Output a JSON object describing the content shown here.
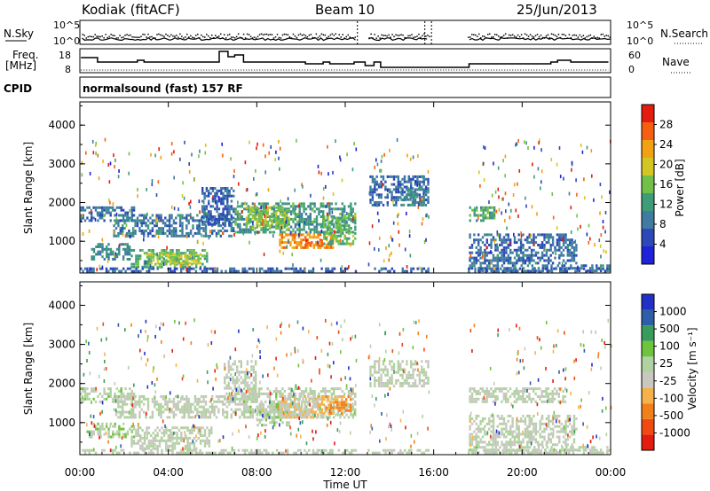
{
  "header": {
    "station": "Kodiak (fitACF)",
    "beam": "Beam 10",
    "date": "25/Jun/2013"
  },
  "noise_panel": {
    "left_label": "N.Sky",
    "right_label": "N.Search",
    "left_ticks": [
      "10^5",
      "10^0"
    ],
    "right_ticks": [
      "10^5",
      "10^0"
    ]
  },
  "freq_panel": {
    "left_label_1": "Freq.",
    "left_label_2": "[MHz]",
    "right_label": "Nave",
    "left_ticks": [
      "18",
      "8"
    ],
    "right_ticks": [
      "60",
      "0"
    ]
  },
  "cpid_panel": {
    "label": "CPID",
    "text": "normalsound (fast) 157 RF"
  },
  "colors": {
    "power_scale": [
      "#1e22d8",
      "#2d49b8",
      "#3f7ca0",
      "#3f9c78",
      "#72c04a",
      "#d2c624",
      "#f2a014",
      "#f46010",
      "#e41c10"
    ],
    "velocity_scale": [
      "#e41c10",
      "#f04a10",
      "#f2801a",
      "#f6b24a",
      "#c8c8c0",
      "#b0d2a0",
      "#6ec43c",
      "#3a9c5a",
      "#2f5ea8",
      "#2230c8"
    ]
  },
  "chart_data": [
    {
      "type": "heatmap",
      "id": "power",
      "xlabel": "",
      "ylabel": "Slant Range [km]",
      "ylim": [
        180,
        4600
      ],
      "xlim": [
        "00:00",
        "24:00"
      ],
      "yticks": [
        "1000",
        "2000",
        "3000",
        "4000"
      ],
      "xticks": [
        "00:00",
        "04:00",
        "08:00",
        "12:00",
        "16:00",
        "20:00",
        "00:00"
      ],
      "colorbar_label": "Power [dB]",
      "colorbar_ticks": [
        "4",
        "8",
        "12",
        "16",
        "20",
        "24",
        "28"
      ],
      "colorbar_range": [
        0,
        32
      ],
      "regions": [
        {
          "t": [
            0.0,
            2.5
          ],
          "r": [
            1500,
            1900
          ],
          "v": 8
        },
        {
          "t": [
            0.5,
            2.3
          ],
          "r": [
            500,
            950
          ],
          "v": 10
        },
        {
          "t": [
            2.3,
            5.8
          ],
          "r": [
            300,
            800
          ],
          "v": 14
        },
        {
          "t": [
            3.0,
            5.5
          ],
          "r": [
            400,
            700
          ],
          "v": 18
        },
        {
          "t": [
            1.5,
            7.0
          ],
          "r": [
            1100,
            1700
          ],
          "v": 9
        },
        {
          "t": [
            5.5,
            7.0
          ],
          "r": [
            1400,
            2400
          ],
          "v": 7
        },
        {
          "t": [
            7.0,
            12.5
          ],
          "r": [
            1200,
            2000
          ],
          "v": 12
        },
        {
          "t": [
            7.5,
            9.5
          ],
          "r": [
            1300,
            1900
          ],
          "v": 17
        },
        {
          "t": [
            9.0,
            11.5
          ],
          "r": [
            800,
            1200
          ],
          "v": 24
        },
        {
          "t": [
            10.0,
            11.0
          ],
          "r": [
            850,
            1050
          ],
          "v": 28
        },
        {
          "t": [
            11.0,
            12.5
          ],
          "r": [
            900,
            1700
          ],
          "v": 15
        },
        {
          "t": [
            13.0,
            15.8
          ],
          "r": [
            1900,
            2700
          ],
          "v": 8
        },
        {
          "t": [
            14.5,
            15.8
          ],
          "r": [
            1900,
            2400
          ],
          "v": 10
        },
        {
          "t": [
            17.5,
            18.8
          ],
          "r": [
            1500,
            1900
          ],
          "v": 13
        },
        {
          "t": [
            17.5,
            22.5
          ],
          "r": [
            400,
            1200
          ],
          "v": 8
        },
        {
          "t": [
            17.5,
            24.0
          ],
          "r": [
            200,
            400
          ],
          "v": 9
        },
        {
          "t": [
            0.0,
            24.0
          ],
          "r": [
            190,
            320
          ],
          "v": 7
        }
      ],
      "gaps": [
        [
          12.5,
          13.0
        ],
        [
          15.8,
          17.5
        ]
      ]
    },
    {
      "type": "heatmap",
      "id": "velocity",
      "xlabel": "Time UT",
      "ylabel": "Slant Range [km]",
      "ylim": [
        180,
        4600
      ],
      "xlim": [
        "00:00",
        "24:00"
      ],
      "yticks": [
        "1000",
        "2000",
        "3000",
        "4000"
      ],
      "xticks": [
        "00:00",
        "04:00",
        "08:00",
        "12:00",
        "16:00",
        "20:00",
        "00:00"
      ],
      "colorbar_label": "Velocity [m s⁻¹]",
      "colorbar_ticks": [
        "1000",
        "500",
        "100",
        "25",
        "-25",
        "-100",
        "-500",
        "-1000"
      ],
      "colorbar_range": [
        -1200,
        1200
      ],
      "regions": [
        {
          "t": [
            0.0,
            2.5
          ],
          "r": [
            1500,
            1900
          ],
          "v": 60
        },
        {
          "t": [
            0.3,
            2.5
          ],
          "r": [
            600,
            1000
          ],
          "v": 150
        },
        {
          "t": [
            2.3,
            6.0
          ],
          "r": [
            300,
            900
          ],
          "v": 0
        },
        {
          "t": [
            1.5,
            7.0
          ],
          "r": [
            1100,
            1700
          ],
          "v": 0
        },
        {
          "t": [
            6.5,
            8.0
          ],
          "r": [
            1500,
            2600
          ],
          "v": 0
        },
        {
          "t": [
            7.0,
            12.5
          ],
          "r": [
            1100,
            1900
          ],
          "v": 50
        },
        {
          "t": [
            8.0,
            9.5
          ],
          "r": [
            900,
            1500
          ],
          "v": 80
        },
        {
          "t": [
            9.0,
            11.0
          ],
          "r": [
            1100,
            1700
          ],
          "v": -200
        },
        {
          "t": [
            11.0,
            12.3
          ],
          "r": [
            1200,
            1700
          ],
          "v": -450
        },
        {
          "t": [
            13.0,
            15.8
          ],
          "r": [
            1900,
            2600
          ],
          "v": 0
        },
        {
          "t": [
            17.5,
            22.0
          ],
          "r": [
            1500,
            1900
          ],
          "v": 0
        },
        {
          "t": [
            17.5,
            22.5
          ],
          "r": [
            400,
            1200
          ],
          "v": 0
        },
        {
          "t": [
            17.5,
            24.0
          ],
          "r": [
            200,
            400
          ],
          "v": 40
        },
        {
          "t": [
            0.0,
            24.0
          ],
          "r": [
            190,
            320
          ],
          "v": 0
        }
      ],
      "gaps": [
        [
          12.5,
          13.0
        ],
        [
          15.8,
          17.5
        ]
      ]
    }
  ]
}
